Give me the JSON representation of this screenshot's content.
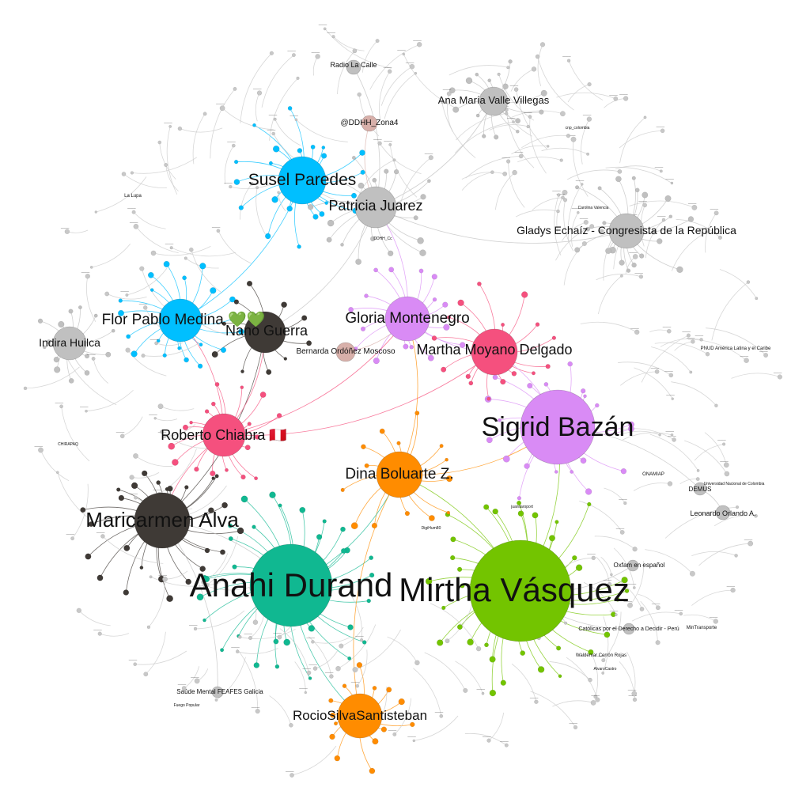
{
  "colors": {
    "gray": "#c0c0c0",
    "cyan": "#00bfff",
    "dark": "#3f3a36",
    "pink": "#f5507e",
    "violet": "#d98bf5",
    "orange": "#ff8c00",
    "green": "#73c400",
    "teal": "#10b891",
    "rose": "#d8b0aa"
  },
  "hubs": [
    {
      "id": "mirtha",
      "label": "Mirtha Vásquez",
      "color": "green",
      "fontsize": 42
    },
    {
      "id": "anahi",
      "label": "Anahi Durand",
      "color": "teal",
      "fontsize": 42
    },
    {
      "id": "sigrid",
      "label": "Sigrid Bazán",
      "color": "violet",
      "fontsize": 34
    },
    {
      "id": "maricarmen",
      "label": "Maricarmen Alva",
      "color": "dark",
      "fontsize": 26
    },
    {
      "id": "susel",
      "label": "Susel Paredes",
      "color": "cyan",
      "fontsize": 21
    },
    {
      "id": "flor",
      "label": "Flor Pablo Medina 💚💚",
      "color": "cyan",
      "fontsize": 19
    },
    {
      "id": "patricia",
      "label": "Patricia Juarez",
      "color": "gray",
      "fontsize": 18
    },
    {
      "id": "gloria",
      "label": "Gloria Montenegro",
      "color": "violet",
      "fontsize": 19
    },
    {
      "id": "martha",
      "label": "Martha Moyano Delgado",
      "color": "pink",
      "fontsize": 18
    },
    {
      "id": "nano",
      "label": "Nano Guerra",
      "color": "dark",
      "fontsize": 18
    },
    {
      "id": "roberto",
      "label": "Roberto Chiabra 🇵🇪",
      "color": "pink",
      "fontsize": 18
    },
    {
      "id": "dina",
      "label": "Dina Boluarte Z.",
      "color": "orange",
      "fontsize": 19
    },
    {
      "id": "rocio",
      "label": "RocioSilvaSantisteban",
      "color": "orange",
      "fontsize": 17
    },
    {
      "id": "gladys",
      "label": "Gladys Echaíz - Congresista de la República",
      "color": "gray",
      "fontsize": 14
    },
    {
      "id": "ana",
      "label": "Ana María Valle Villegas",
      "color": "gray",
      "fontsize": 13
    },
    {
      "id": "indira",
      "label": "Indira Huilca",
      "color": "gray",
      "fontsize": 14
    },
    {
      "id": "radio",
      "label": "Radio La Calle",
      "color": "gray",
      "fontsize": 9
    },
    {
      "id": "ddhh",
      "label": "@DDHH_Zona4",
      "color": "rose",
      "fontsize": 10
    },
    {
      "id": "bernarda",
      "label": "Bernarda Ordóñez Moscoso",
      "color": "rose",
      "fontsize": 10
    },
    {
      "id": "leonardo",
      "label": "Leonardo Orlando A.",
      "color": "gray",
      "fontsize": 9
    },
    {
      "id": "demus",
      "label": "DEMUS",
      "color": "gray",
      "fontsize": 8
    },
    {
      "id": "oxfam",
      "label": "Oxfam en español",
      "color": "gray",
      "fontsize": 8
    },
    {
      "id": "catolicas",
      "label": "Católicas por el Derecho a Decidir - Perú",
      "color": "gray",
      "fontsize": 7
    },
    {
      "id": "saude",
      "label": "Saúde Mental FEAFES Galicia",
      "color": "gray",
      "fontsize": 8
    }
  ],
  "minor_labels": [
    "La Lupa",
    "PNUD América Latina y el Caribe",
    "Universidad Nacional de Colombia",
    "ONAMIAP",
    "MinTransporte",
    "Waldemar Cerrón Rojas",
    "Fuego Popular",
    "DDHH_Cc",
    "CHIRAPAQ",
    "Carolina Valencia",
    "juanitaroport",
    "AlvaroCastro",
    "cnp_colombia",
    "DigiHum80"
  ]
}
